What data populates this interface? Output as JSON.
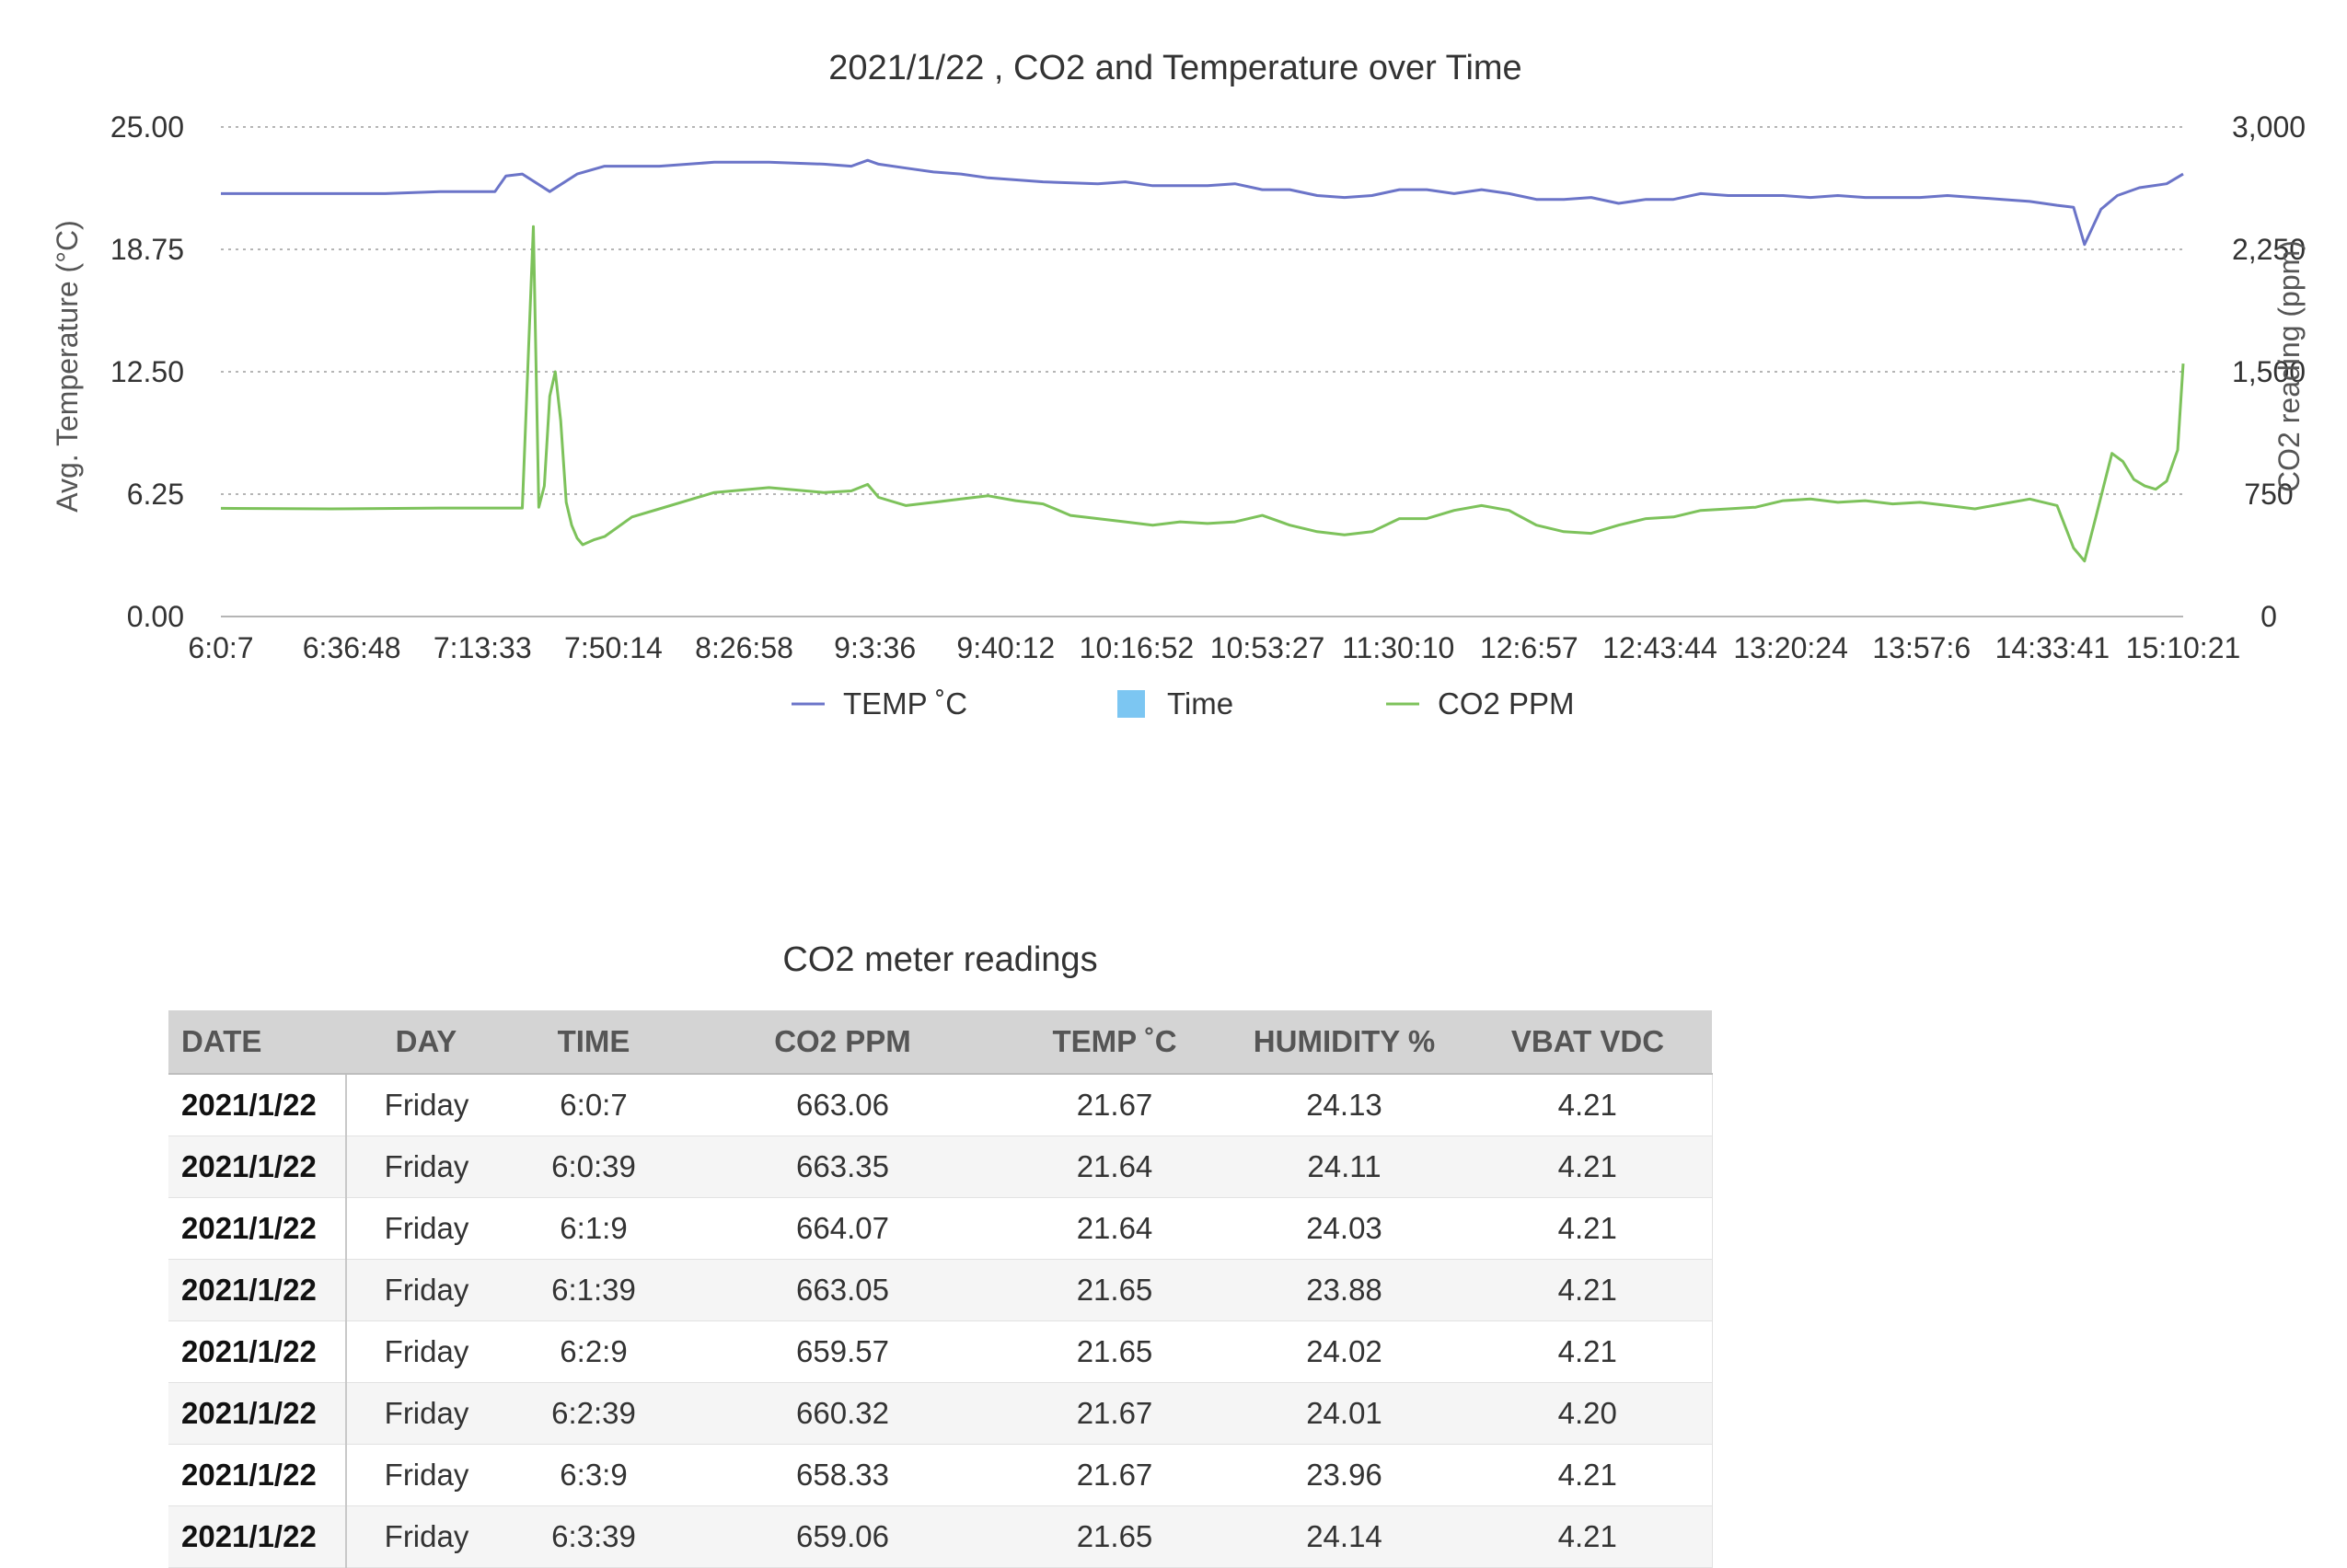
{
  "chart_data": {
    "type": "line",
    "title": "2021/1/22 , CO2 and Temperature over Time",
    "x_ticks": [
      "6:0:7",
      "6:36:48",
      "7:13:33",
      "7:50:14",
      "8:26:58",
      "9:3:36",
      "9:40:12",
      "10:16:52",
      "10:53:27",
      "11:30:10",
      "12:6:57",
      "12:43:44",
      "13:20:24",
      "13:57:6",
      "14:33:41",
      "15:10:21"
    ],
    "y_left": {
      "label": "Avg. Temperature (°C)",
      "ticks": [
        "0.00",
        "6.25",
        "12.50",
        "18.75",
        "25.00"
      ],
      "lim": [
        0,
        25
      ]
    },
    "y_right": {
      "label": "CO2 reading (ppm)",
      "ticks": [
        "0",
        "750",
        "1,500",
        "2,250",
        "3,000"
      ],
      "lim": [
        0,
        3000
      ]
    },
    "grid": true,
    "legend_position": "bottom-center",
    "legend": [
      {
        "label": "TEMP ˚C",
        "color": "#6b74c8",
        "marker": "line"
      },
      {
        "label": "Time",
        "color": "#7cc6f2",
        "marker": "square"
      },
      {
        "label": "CO2 PPM",
        "color": "#7dc25b",
        "marker": "line"
      }
    ],
    "series": [
      {
        "name": "TEMP ˚C",
        "axis": "left",
        "color": "#6b74c8",
        "x_index": [
          0,
          10,
          20,
          30,
          40,
          45,
          48,
          50,
          52,
          55,
          60,
          65,
          70,
          80,
          90,
          100,
          110,
          115,
          118,
          120,
          125,
          130,
          135,
          140,
          150,
          160,
          165,
          170,
          175,
          180,
          185,
          190,
          195,
          200,
          205,
          210,
          215,
          220,
          225,
          230,
          235,
          240,
          245,
          250,
          255,
          260,
          265,
          270,
          275,
          280,
          285,
          290,
          295,
          300,
          305,
          310,
          315,
          320,
          325,
          330,
          335,
          338,
          340,
          343,
          346,
          350,
          355,
          358
        ],
        "values": [
          21.6,
          21.6,
          21.6,
          21.6,
          21.7,
          21.7,
          21.7,
          21.7,
          22.5,
          22.6,
          21.7,
          22.6,
          23.0,
          23.0,
          23.2,
          23.2,
          23.1,
          23.0,
          23.3,
          23.1,
          22.9,
          22.7,
          22.6,
          22.4,
          22.2,
          22.1,
          22.2,
          22.0,
          22.0,
          22.0,
          22.1,
          21.8,
          21.8,
          21.5,
          21.4,
          21.5,
          21.8,
          21.8,
          21.6,
          21.8,
          21.6,
          21.3,
          21.3,
          21.4,
          21.1,
          21.3,
          21.3,
          21.6,
          21.5,
          21.5,
          21.5,
          21.4,
          21.5,
          21.4,
          21.4,
          21.4,
          21.5,
          21.4,
          21.3,
          21.2,
          21.0,
          20.9,
          19.0,
          20.8,
          21.5,
          21.9,
          22.1,
          22.6
        ]
      },
      {
        "name": "CO2 PPM",
        "axis": "right",
        "color": "#7dc25b",
        "x_index": [
          0,
          20,
          40,
          55,
          57,
          58,
          59,
          60,
          61,
          62,
          63,
          64,
          65,
          66,
          68,
          70,
          75,
          80,
          90,
          100,
          110,
          115,
          118,
          120,
          125,
          130,
          135,
          140,
          145,
          150,
          155,
          160,
          165,
          170,
          175,
          180,
          185,
          190,
          195,
          200,
          205,
          210,
          215,
          220,
          225,
          230,
          235,
          240,
          245,
          250,
          255,
          260,
          265,
          270,
          275,
          280,
          285,
          290,
          295,
          300,
          305,
          310,
          315,
          320,
          325,
          330,
          335,
          338,
          340,
          342,
          345,
          347,
          349,
          351,
          353,
          355,
          357,
          358
        ],
        "values": [
          663,
          660,
          665,
          665,
          2390,
          670,
          800,
          1350,
          1500,
          1200,
          700,
          560,
          480,
          440,
          470,
          490,
          610,
          660,
          760,
          790,
          760,
          770,
          810,
          730,
          680,
          700,
          720,
          740,
          710,
          690,
          620,
          600,
          580,
          560,
          580,
          570,
          580,
          620,
          560,
          520,
          500,
          520,
          600,
          600,
          650,
          680,
          650,
          560,
          520,
          510,
          560,
          600,
          610,
          650,
          660,
          670,
          710,
          720,
          700,
          710,
          690,
          700,
          680,
          660,
          690,
          720,
          680,
          420,
          340,
          600,
          1000,
          950,
          840,
          800,
          780,
          830,
          1020,
          1550
        ]
      }
    ]
  },
  "table": {
    "title": "CO2 meter readings",
    "headers": [
      "DATE",
      "DAY",
      "TIME",
      "CO2 PPM",
      "TEMP ˚C",
      "HUMIDITY %",
      "VBAT VDC"
    ],
    "rows": [
      [
        "2021/1/22",
        "Friday",
        "6:0:7",
        "663.06",
        "21.67",
        "24.13",
        "4.21"
      ],
      [
        "2021/1/22",
        "Friday",
        "6:0:39",
        "663.35",
        "21.64",
        "24.11",
        "4.21"
      ],
      [
        "2021/1/22",
        "Friday",
        "6:1:9",
        "664.07",
        "21.64",
        "24.03",
        "4.21"
      ],
      [
        "2021/1/22",
        "Friday",
        "6:1:39",
        "663.05",
        "21.65",
        "23.88",
        "4.21"
      ],
      [
        "2021/1/22",
        "Friday",
        "6:2:9",
        "659.57",
        "21.65",
        "24.02",
        "4.21"
      ],
      [
        "2021/1/22",
        "Friday",
        "6:2:39",
        "660.32",
        "21.67",
        "24.01",
        "4.20"
      ],
      [
        "2021/1/22",
        "Friday",
        "6:3:9",
        "658.33",
        "21.67",
        "23.96",
        "4.21"
      ],
      [
        "2021/1/22",
        "Friday",
        "6:3:39",
        "659.06",
        "21.65",
        "24.14",
        "4.21"
      ]
    ]
  }
}
